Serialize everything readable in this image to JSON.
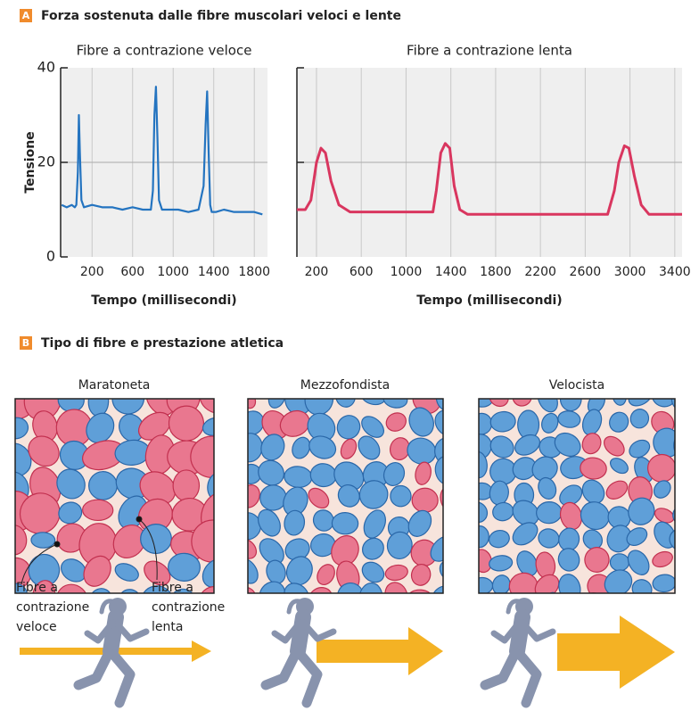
{
  "panel_a": {
    "letter": "A",
    "title": "Forza sostenuta dalle fibre muscolari veloci e lente"
  },
  "chart_data": [
    {
      "type": "line",
      "title": "Fibre a contrazione veloce",
      "xlabel": "Tempo (millisecondi)",
      "ylabel": "Tensione",
      "xlim": [
        -110,
        1930
      ],
      "ylim": [
        0,
        40
      ],
      "xticks": [
        200,
        600,
        1000,
        1400,
        1800
      ],
      "yticks": [
        0,
        20,
        40
      ],
      "grid": true,
      "x": [
        -100,
        -50,
        0,
        30,
        45,
        60,
        70,
        80,
        95,
        120,
        200,
        300,
        400,
        500,
        600,
        700,
        780,
        800,
        815,
        830,
        845,
        860,
        890,
        950,
        1050,
        1150,
        1250,
        1300,
        1320,
        1335,
        1350,
        1365,
        1380,
        1420,
        1500,
        1600,
        1700,
        1800,
        1880
      ],
      "series": [
        {
          "name": "Fibre a contrazione veloce",
          "color": "#2474c0",
          "values": [
            11,
            10.5,
            11,
            10.5,
            11,
            18,
            30,
            22,
            12,
            10.5,
            11,
            10.5,
            10.5,
            10,
            10.5,
            10,
            10,
            14,
            30,
            36,
            25,
            12,
            10,
            10,
            10,
            9.5,
            10,
            15,
            28,
            35,
            22,
            11,
            9.5,
            9.5,
            10,
            9.5,
            9.5,
            9.5,
            9
          ]
        }
      ]
    },
    {
      "type": "line",
      "title": "Fibre a contrazione lenta",
      "xlabel": "Tempo (millisecondi)",
      "xlim": [
        25,
        3465
      ],
      "ylim": [
        0,
        40
      ],
      "xticks": [
        200,
        600,
        1000,
        1400,
        1800,
        2200,
        2600,
        3000,
        3400
      ],
      "yticks": [
        20,
        40
      ],
      "grid": true,
      "x": [
        25,
        100,
        150,
        200,
        240,
        280,
        330,
        400,
        500,
        700,
        900,
        1100,
        1240,
        1270,
        1310,
        1350,
        1390,
        1430,
        1480,
        1550,
        1700,
        2000,
        2400,
        2800,
        2860,
        2900,
        2950,
        2990,
        3040,
        3100,
        3170,
        3300,
        3465
      ],
      "series": [
        {
          "name": "Fibre a contrazione lenta",
          "color": "#d9365f",
          "values": [
            10,
            10,
            12,
            20,
            23,
            22,
            16,
            11,
            9.5,
            9.5,
            9.5,
            9.5,
            9.5,
            14,
            22,
            24,
            23,
            15,
            10,
            9,
            9,
            9,
            9,
            9,
            14,
            20,
            23.5,
            23,
            17,
            11,
            9,
            9,
            9
          ]
        }
      ]
    }
  ],
  "panel_b": {
    "letter": "B",
    "title": "Tipo di fibre e prestazione atletica",
    "panels": [
      "Maratoneta",
      "Mezzofondista",
      "Velocista"
    ],
    "annotations": [
      "Fibre a contrazione veloce",
      "Fibre a contrazione lenta"
    ]
  }
}
